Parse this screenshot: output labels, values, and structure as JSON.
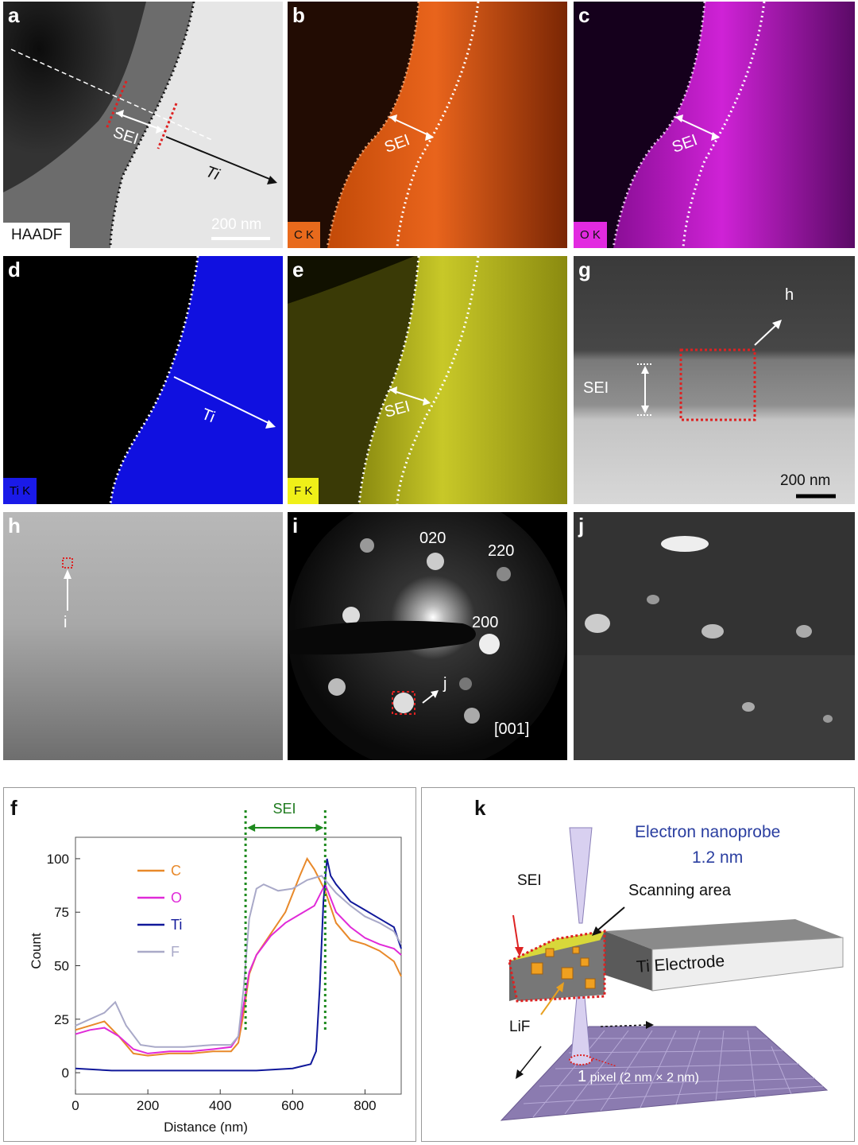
{
  "panels": {
    "a": {
      "label": "a",
      "tag": "HAADF",
      "sei": "SEI",
      "ti": "Ti",
      "scale": "200 nm"
    },
    "b": {
      "label": "b",
      "tag": "C K",
      "sei": "SEI"
    },
    "c": {
      "label": "c",
      "tag": "O K",
      "sei": "SEI"
    },
    "d": {
      "label": "d",
      "tag": "Ti K",
      "ti": "Ti"
    },
    "e": {
      "label": "e",
      "tag": "F K",
      "sei": "SEI"
    },
    "g": {
      "label": "g",
      "sei": "SEI",
      "h": "h",
      "scale": "200 nm"
    },
    "h": {
      "label": "h",
      "i": "i"
    },
    "i": {
      "label": "i",
      "s020": "020",
      "s220": "220",
      "s200": "200",
      "zone": "[001]",
      "j": "j"
    },
    "j": {
      "label": "j"
    },
    "f": {
      "label": "f",
      "sei": "SEI"
    },
    "k": {
      "label": "k",
      "title1": "Electron nanoprobe",
      "title2": "1.2 nm",
      "sei": "SEI",
      "scan": "Scanning area",
      "electrode": "Ti Electrode",
      "lif": "LiF",
      "pixel_big": "1",
      "pixel_small": "pixel (2 nm × 2 nm)"
    }
  },
  "chart_data": {
    "type": "line",
    "xlabel": "Distance (nm)",
    "ylabel": "Count",
    "xlim": [
      0,
      900
    ],
    "ylim": [
      -10,
      110
    ],
    "xticks": [
      0,
      200,
      400,
      600,
      800
    ],
    "yticks": [
      0,
      25,
      50,
      75,
      100
    ],
    "sei_boundaries": [
      470,
      690
    ],
    "legend_position": "upper-left",
    "series": [
      {
        "name": "C",
        "color": "#e8892a",
        "x": [
          0,
          40,
          80,
          120,
          160,
          200,
          260,
          320,
          380,
          430,
          450,
          465,
          480,
          500,
          540,
          580,
          620,
          640,
          660,
          690,
          720,
          760,
          800,
          840,
          880,
          900
        ],
        "y": [
          20,
          22,
          24,
          17,
          9,
          8,
          9,
          9,
          10,
          10,
          14,
          28,
          46,
          55,
          65,
          75,
          92,
          100,
          95,
          85,
          70,
          62,
          60,
          57,
          52,
          45
        ]
      },
      {
        "name": "O",
        "color": "#e02ad8",
        "x": [
          0,
          40,
          80,
          120,
          160,
          200,
          260,
          320,
          380,
          430,
          450,
          465,
          480,
          500,
          540,
          580,
          620,
          660,
          690,
          720,
          760,
          800,
          840,
          880,
          900
        ],
        "y": [
          18,
          20,
          21,
          17,
          11,
          9,
          10,
          10,
          11,
          12,
          17,
          32,
          47,
          55,
          64,
          70,
          74,
          78,
          88,
          75,
          68,
          63,
          60,
          58,
          55
        ]
      },
      {
        "name": "Ti",
        "color": "#10189a",
        "x": [
          0,
          100,
          200,
          300,
          400,
          500,
          600,
          650,
          665,
          675,
          685,
          695,
          705,
          720,
          760,
          800,
          840,
          880,
          900
        ],
        "y": [
          2,
          1,
          1,
          1,
          1,
          1,
          2,
          4,
          10,
          40,
          80,
          100,
          92,
          88,
          80,
          76,
          72,
          68,
          58
        ]
      },
      {
        "name": "F",
        "color": "#a9a9c8",
        "x": [
          0,
          40,
          80,
          110,
          140,
          180,
          220,
          300,
          380,
          430,
          450,
          465,
          480,
          500,
          520,
          560,
          600,
          640,
          680,
          700,
          720,
          760,
          800,
          840,
          880,
          900
        ],
        "y": [
          22,
          25,
          28,
          33,
          22,
          13,
          12,
          12,
          13,
          13,
          17,
          40,
          72,
          86,
          88,
          85,
          86,
          90,
          92,
          88,
          84,
          78,
          73,
          70,
          66,
          60
        ]
      }
    ]
  }
}
